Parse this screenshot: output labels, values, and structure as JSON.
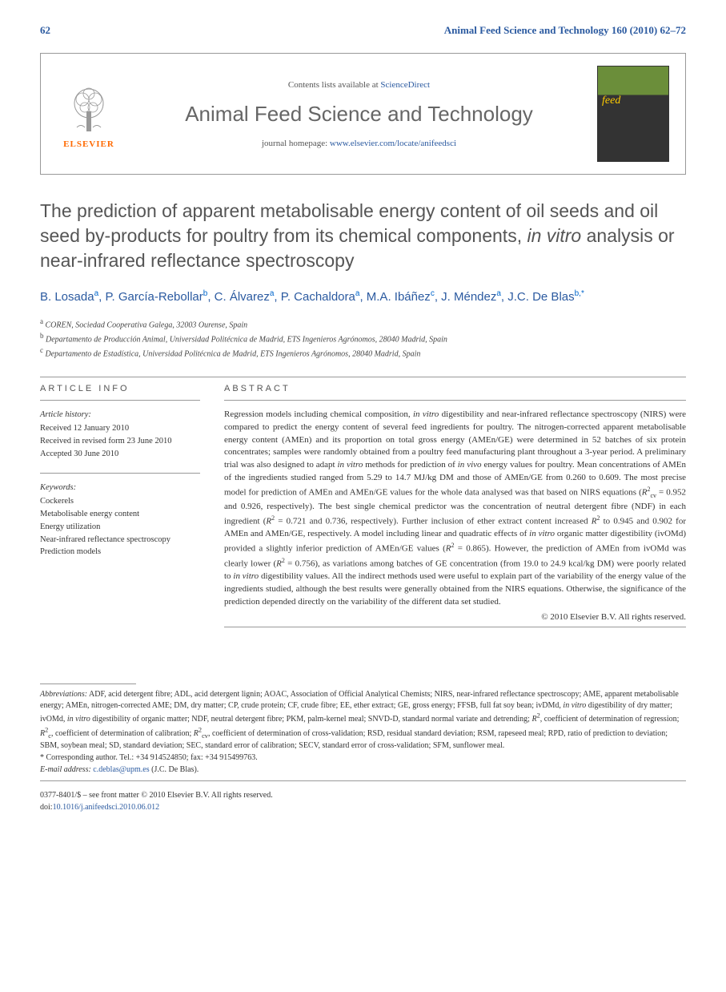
{
  "header": {
    "journal_ref": "Animal Feed Science and Technology 160 (2010) 62–72",
    "page_num": "62"
  },
  "masthead": {
    "contents_prefix": "Contents lists available at ",
    "contents_link": "ScienceDirect",
    "journal_title": "Animal Feed Science and Technology",
    "homepage_prefix": "journal homepage: ",
    "homepage_url": "www.elsevier.com/locate/anifeedsci",
    "elsevier_label": "ELSEVIER",
    "cover_text": "feed"
  },
  "article": {
    "title_part1": "The prediction of apparent metabolisable energy content of oil seeds and oil seed by-products for poultry from its chemical components, ",
    "title_italic": "in vitro",
    "title_part2": " analysis or near-infrared reflectance spectroscopy",
    "authors_html": "B. Losada<sup>a</sup>, P. García-Rebollar<sup>b</sup>, C. Álvarez<sup>a</sup>, P. Cachaldora<sup>a</sup>, M.A. Ibáñez<sup>c</sup>, J. Méndez<sup>a</sup>, J.C. De Blas<sup>b,*</sup>",
    "affiliations": [
      {
        "sup": "a",
        "text": "COREN, Sociedad Cooperativa Galega, 32003 Ourense, Spain"
      },
      {
        "sup": "b",
        "text": "Departamento de Producción Animal, Universidad Politécnica de Madrid, ETS Ingenieros Agrónomos, 28040 Madrid, Spain"
      },
      {
        "sup": "c",
        "text": "Departamento de Estadística, Universidad Politécnica de Madrid, ETS Ingenieros Agrónomos, 28040 Madrid, Spain"
      }
    ]
  },
  "info": {
    "header": "ARTICLE INFO",
    "history_label": "Article history:",
    "history": [
      "Received 12 January 2010",
      "Received in revised form 23 June 2010",
      "Accepted 30 June 2010"
    ],
    "keywords_label": "Keywords:",
    "keywords": [
      "Cockerels",
      "Metabolisable energy content",
      "Energy utilization",
      "Near-infrared reflectance spectroscopy",
      "Prediction models"
    ]
  },
  "abstract": {
    "header": "ABSTRACT",
    "text": "Regression models including chemical composition, <i>in vitro</i> digestibility and near-infrared reflectance spectroscopy (NIRS) were compared to predict the energy content of several feed ingredients for poultry. The nitrogen-corrected apparent metabolisable energy content (AMEn) and its proportion on total gross energy (AMEn/GE) were determined in 52 batches of six protein concentrates; samples were randomly obtained from a poultry feed manufacturing plant throughout a 3-year period. A preliminary trial was also designed to adapt <i>in vitro</i> methods for prediction of <i>in vivo</i> energy values for poultry. Mean concentrations of AMEn of the ingredients studied ranged from 5.29 to 14.7 MJ/kg DM and those of AMEn/GE from 0.260 to 0.609. The most precise model for prediction of AMEn and AMEn/GE values for the whole data analysed was that based on NIRS equations (<i>R</i><sup>2</sup><sub>cv</sub> = 0.952 and 0.926, respectively). The best single chemical predictor was the concentration of neutral detergent fibre (NDF) in each ingredient (<i>R</i><sup>2</sup> = 0.721 and 0.736, respectively). Further inclusion of ether extract content increased <i>R</i><sup>2</sup> to 0.945 and 0.902 for AMEn and AMEn/GE, respectively. A model including linear and quadratic effects of <i>in vitro</i> organic matter digestibility (ivOMd) provided a slightly inferior prediction of AMEn/GE values (<i>R</i><sup>2</sup> = 0.865). However, the prediction of AMEn from ivOMd was clearly lower (<i>R</i><sup>2</sup> = 0.756), as variations among batches of GE concentration (from 19.0 to 24.9 kcal/kg DM) were poorly related to <i>in vitro</i> digestibility values. All the indirect methods used were useful to explain part of the variability of the energy value of the ingredients studied, although the best results were generally obtained from the NIRS equations. Otherwise, the significance of the prediction depended directly on the variability of the different data set studied.",
    "copyright": "© 2010 Elsevier B.V. All rights reserved."
  },
  "footer": {
    "abbrev_label": "Abbreviations:",
    "abbrev_text": "ADF, acid detergent fibre; ADL, acid detergent lignin; AOAC, Association of Official Analytical Chemists; NIRS, near-infrared reflectance spectroscopy; AME, apparent metabolisable energy; AMEn, nitrogen-corrected AME; DM, dry matter; CP, crude protein; CF, crude fibre; EE, ether extract; GE, gross energy; FFSB, full fat soy bean; ivDMd, <i>in vitro</i> digestibility of dry matter; ivOMd, <i>in vitro</i> digestibility of organic matter; NDF, neutral detergent fibre; PKM, palm-kernel meal; SNVD-D, standard normal variate and detrending; <i>R</i><sup>2</sup>, coefficient of determination of regression; <i>R</i><sup>2</sup><sub>c</sub>, coefficient of determination of calibration; <i>R</i><sup>2</sup><sub>cv</sub>, coefficient of determination of cross-validation; RSD, residual standard deviation; RSM, rapeseed meal; RPD, ratio of prediction to deviation; SBM, soybean meal; SD, standard deviation; SEC, standard error of calibration; SECV, standard error of cross-validation; SFM, sunflower meal.",
    "corresponding_label": "* Corresponding author. Tel.: +34 914524850; fax: +34 915499763.",
    "email_label": "E-mail address:",
    "email": "c.deblas@upm.es",
    "email_author": "(J.C. De Blas).",
    "issn_line": "0377-8401/$ – see front matter © 2010 Elsevier B.V. All rights reserved.",
    "doi_label": "doi:",
    "doi": "10.1016/j.anifeedsci.2010.06.012"
  }
}
